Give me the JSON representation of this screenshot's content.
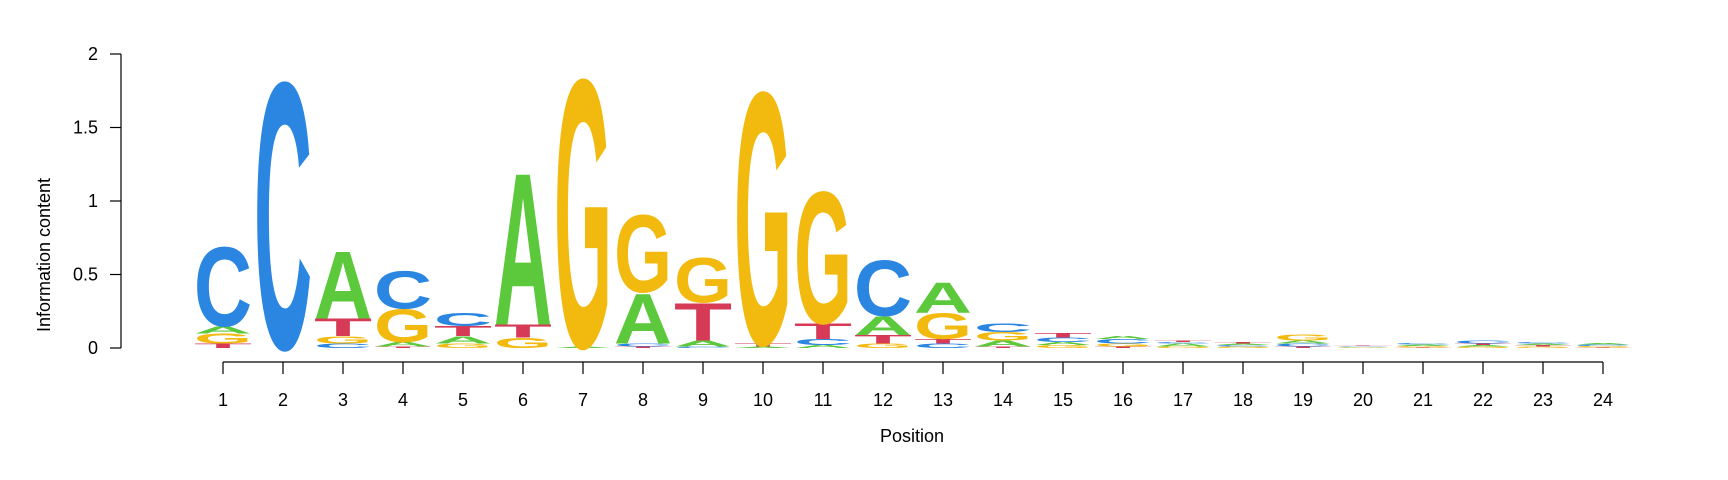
{
  "chart_data": {
    "type": "sequence-logo",
    "title": "",
    "xlabel": "Position",
    "ylabel": "Information content",
    "ylim": [
      0,
      2
    ],
    "y_ticks": [
      "0",
      "0.5",
      "1",
      "1.5",
      "2"
    ],
    "x_ticks": [
      "1",
      "2",
      "3",
      "4",
      "5",
      "6",
      "7",
      "8",
      "9",
      "10",
      "11",
      "12",
      "13",
      "14",
      "15",
      "16",
      "17",
      "18",
      "19",
      "20",
      "21",
      "22",
      "23",
      "24"
    ],
    "colors": {
      "A": "#5CC83B",
      "C": "#2A86E0",
      "G": "#F2B90F",
      "T": "#D63A57"
    },
    "positions": [
      {
        "pos": 1,
        "letters": [
          [
            "T",
            0.03
          ],
          [
            "G",
            0.07
          ],
          [
            "A",
            0.05
          ],
          [
            "C",
            0.55
          ]
        ]
      },
      {
        "pos": 2,
        "letters": [
          [
            "C",
            1.86
          ]
        ]
      },
      {
        "pos": 3,
        "letters": [
          [
            "C",
            0.03
          ],
          [
            "G",
            0.05
          ],
          [
            "T",
            0.12
          ],
          [
            "A",
            0.47
          ]
        ]
      },
      {
        "pos": 4,
        "letters": [
          [
            "T",
            0.01
          ],
          [
            "A",
            0.03
          ],
          [
            "G",
            0.23
          ],
          [
            "C",
            0.26
          ]
        ]
      },
      {
        "pos": 5,
        "letters": [
          [
            "G",
            0.03
          ],
          [
            "A",
            0.05
          ],
          [
            "T",
            0.07
          ],
          [
            "C",
            0.09
          ]
        ]
      },
      {
        "pos": 6,
        "letters": [
          [
            "G",
            0.07
          ],
          [
            "T",
            0.09
          ],
          [
            "A",
            1.06
          ]
        ]
      },
      {
        "pos": 7,
        "letters": [
          [
            "A",
            0.01
          ],
          [
            "G",
            1.87
          ]
        ]
      },
      {
        "pos": 8,
        "letters": [
          [
            "T",
            0.01
          ],
          [
            "C",
            0.02
          ],
          [
            "A",
            0.35
          ],
          [
            "G",
            0.54
          ]
        ]
      },
      {
        "pos": 9,
        "letters": [
          [
            "C",
            0.01
          ],
          [
            "A",
            0.04
          ],
          [
            "T",
            0.26
          ],
          [
            "G",
            0.31
          ]
        ]
      },
      {
        "pos": 10,
        "letters": [
          [
            "A",
            0.01
          ],
          [
            "T",
            0.02
          ],
          [
            "G",
            1.76
          ]
        ]
      },
      {
        "pos": 11,
        "letters": [
          [
            "A",
            0.02
          ],
          [
            "C",
            0.04
          ],
          [
            "T",
            0.11
          ],
          [
            "G",
            0.92
          ]
        ]
      },
      {
        "pos": 12,
        "letters": [
          [
            "G",
            0.03
          ],
          [
            "T",
            0.06
          ],
          [
            "A",
            0.13
          ],
          [
            "C",
            0.39
          ]
        ]
      },
      {
        "pos": 13,
        "letters": [
          [
            "C",
            0.03
          ],
          [
            "T",
            0.03
          ],
          [
            "G",
            0.18
          ],
          [
            "A",
            0.21
          ]
        ]
      },
      {
        "pos": 14,
        "letters": [
          [
            "T",
            0.01
          ],
          [
            "A",
            0.04
          ],
          [
            "G",
            0.06
          ],
          [
            "C",
            0.06
          ]
        ]
      },
      {
        "pos": 15,
        "letters": [
          [
            "G",
            0.02
          ],
          [
            "A",
            0.02
          ],
          [
            "C",
            0.03
          ],
          [
            "T",
            0.03
          ]
        ]
      },
      {
        "pos": 16,
        "letters": [
          [
            "T",
            0.01
          ],
          [
            "G",
            0.02
          ],
          [
            "C",
            0.03
          ],
          [
            "A",
            0.02
          ]
        ]
      },
      {
        "pos": 17,
        "letters": [
          [
            "G",
            0.01
          ],
          [
            "A",
            0.02
          ],
          [
            "C",
            0.01
          ],
          [
            "T",
            0.01
          ]
        ]
      },
      {
        "pos": 18,
        "letters": [
          [
            "G",
            0.01
          ],
          [
            "C",
            0.01
          ],
          [
            "A",
            0.01
          ],
          [
            "T",
            0.01
          ]
        ]
      },
      {
        "pos": 19,
        "letters": [
          [
            "T",
            0.01
          ],
          [
            "C",
            0.02
          ],
          [
            "A",
            0.02
          ],
          [
            "G",
            0.04
          ]
        ]
      },
      {
        "pos": 20,
        "letters": [
          [
            "A",
            0.005
          ],
          [
            "G",
            0.005
          ],
          [
            "C",
            0.005
          ],
          [
            "T",
            0.005
          ]
        ]
      },
      {
        "pos": 21,
        "letters": [
          [
            "T",
            0.005
          ],
          [
            "G",
            0.01
          ],
          [
            "A",
            0.01
          ],
          [
            "C",
            0.01
          ]
        ]
      },
      {
        "pos": 22,
        "letters": [
          [
            "G",
            0.01
          ],
          [
            "A",
            0.01
          ],
          [
            "T",
            0.01
          ],
          [
            "C",
            0.02
          ]
        ]
      },
      {
        "pos": 23,
        "letters": [
          [
            "G",
            0.01
          ],
          [
            "T",
            0.01
          ],
          [
            "A",
            0.01
          ],
          [
            "C",
            0.01
          ]
        ]
      },
      {
        "pos": 24,
        "letters": [
          [
            "T",
            0.005
          ],
          [
            "G",
            0.01
          ],
          [
            "C",
            0.01
          ],
          [
            "A",
            0.01
          ]
        ]
      }
    ]
  }
}
